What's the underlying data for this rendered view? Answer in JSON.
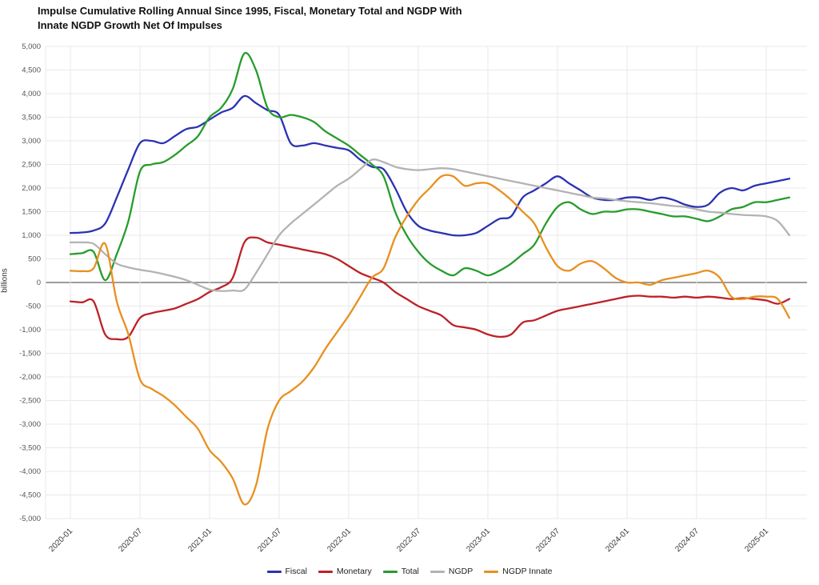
{
  "title": {
    "line1": "Impulse Cumulative Rolling Annual Since 1995, Fiscal, Monetary Total and NGDP With",
    "line2": "Innate NGDP Growth Net Of Impulses"
  },
  "chart_data": {
    "type": "line",
    "title": "Impulse Cumulative Rolling Annual Since 1995, Fiscal, Monetary Total and NGDP With Innate NGDP Growth Net Of Impulses",
    "ylabel": "billions",
    "ylim": [
      -5000,
      5000
    ],
    "ytick_step": 500,
    "grid": true,
    "legend_position": "bottom",
    "x_monthly_start": "2020-01",
    "x_monthly_end": "2025-03",
    "x_tick_labels": [
      "2020-01",
      "2020-07",
      "2021-01",
      "2021-07",
      "2022-01",
      "2022-07",
      "2023-01",
      "2023-07",
      "2024-01",
      "2024-07",
      "2025-01"
    ],
    "series": [
      {
        "name": "Fiscal",
        "color": "#2b32b2",
        "values": [
          1050,
          1060,
          1100,
          1250,
          1800,
          2400,
          2950,
          3000,
          2950,
          3100,
          3250,
          3300,
          3450,
          3600,
          3700,
          3950,
          3800,
          3650,
          3550,
          2950,
          2900,
          2950,
          2900,
          2850,
          2800,
          2600,
          2450,
          2400,
          2000,
          1500,
          1200,
          1100,
          1050,
          1000,
          1000,
          1050,
          1200,
          1350,
          1400,
          1800,
          1950,
          2100,
          2250,
          2100,
          1950,
          1800,
          1750,
          1750,
          1800,
          1800,
          1750,
          1800,
          1750,
          1650,
          1600,
          1650,
          1900,
          2000,
          1950,
          2050,
          2100,
          2150,
          2200
        ]
      },
      {
        "name": "Monetary",
        "color": "#bd2127",
        "values": [
          -400,
          -420,
          -400,
          -1100,
          -1200,
          -1150,
          -750,
          -650,
          -600,
          -550,
          -450,
          -350,
          -200,
          -100,
          100,
          850,
          950,
          850,
          800,
          750,
          700,
          650,
          600,
          500,
          350,
          200,
          100,
          0,
          -200,
          -350,
          -500,
          -600,
          -700,
          -900,
          -950,
          -1000,
          -1100,
          -1150,
          -1100,
          -850,
          -800,
          -700,
          -600,
          -550,
          -500,
          -450,
          -400,
          -350,
          -300,
          -280,
          -300,
          -300,
          -320,
          -300,
          -320,
          -300,
          -320,
          -350,
          -330,
          -350,
          -380,
          -450,
          -350
        ]
      },
      {
        "name": "Total",
        "color": "#279c2c",
        "values": [
          600,
          620,
          650,
          50,
          600,
          1300,
          2350,
          2500,
          2550,
          2700,
          2900,
          3100,
          3500,
          3700,
          4100,
          4850,
          4500,
          3700,
          3500,
          3550,
          3500,
          3400,
          3200,
          3050,
          2900,
          2700,
          2500,
          2250,
          1500,
          1000,
          650,
          400,
          250,
          150,
          300,
          250,
          150,
          250,
          400,
          600,
          800,
          1250,
          1600,
          1700,
          1550,
          1450,
          1500,
          1500,
          1550,
          1550,
          1500,
          1450,
          1400,
          1400,
          1350,
          1300,
          1400,
          1550,
          1600,
          1700,
          1700,
          1750,
          1800
        ]
      },
      {
        "name": "NGDP",
        "color": "#b3b3b3",
        "values": [
          850,
          850,
          820,
          600,
          400,
          320,
          270,
          230,
          180,
          120,
          50,
          -50,
          -150,
          -180,
          -170,
          -150,
          200,
          600,
          1000,
          1250,
          1450,
          1650,
          1850,
          2050,
          2200,
          2400,
          2600,
          2550,
          2450,
          2400,
          2380,
          2400,
          2420,
          2400,
          2350,
          2300,
          2250,
          2200,
          2150,
          2100,
          2050,
          2000,
          1950,
          1900,
          1850,
          1800,
          1780,
          1750,
          1720,
          1700,
          1680,
          1650,
          1620,
          1600,
          1550,
          1500,
          1480,
          1450,
          1430,
          1420,
          1400,
          1300,
          1000
        ]
      },
      {
        "name": "NGDP Innate",
        "color": "#e8901e",
        "values": [
          250,
          240,
          300,
          820,
          -400,
          -1100,
          -2050,
          -2250,
          -2400,
          -2600,
          -2850,
          -3100,
          -3550,
          -3800,
          -4150,
          -4700,
          -4300,
          -3100,
          -2500,
          -2300,
          -2100,
          -1800,
          -1400,
          -1050,
          -700,
          -300,
          100,
          300,
          950,
          1400,
          1750,
          2000,
          2250,
          2250,
          2050,
          2100,
          2100,
          1950,
          1750,
          1500,
          1250,
          750,
          350,
          250,
          400,
          450,
          300,
          100,
          0,
          0,
          -50,
          50,
          100,
          150,
          200,
          250,
          100,
          -300,
          -350,
          -300,
          -300,
          -350,
          -750
        ]
      }
    ]
  }
}
